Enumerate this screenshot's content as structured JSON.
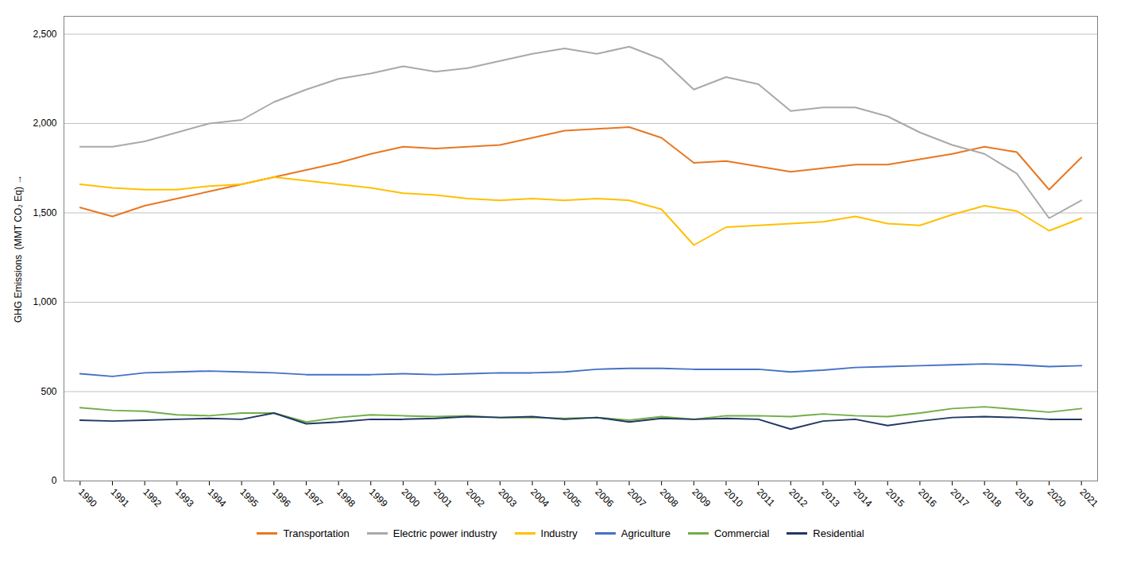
{
  "chart_data": {
    "type": "line",
    "x": [
      1990,
      1991,
      1992,
      1993,
      1994,
      1995,
      1996,
      1997,
      1998,
      1999,
      2000,
      2001,
      2002,
      2003,
      2004,
      2005,
      2006,
      2007,
      2008,
      2009,
      2010,
      2011,
      2012,
      2013,
      2014,
      2015,
      2016,
      2017,
      2018,
      2019,
      2020,
      2021
    ],
    "series": [
      {
        "name": "Transportation",
        "color": "#E87722",
        "values": [
          1530,
          1480,
          1540,
          1580,
          1620,
          1660,
          1700,
          1740,
          1780,
          1830,
          1870,
          1860,
          1870,
          1880,
          1920,
          1960,
          1970,
          1980,
          1920,
          1780,
          1790,
          1760,
          1730,
          1750,
          1770,
          1770,
          1800,
          1830,
          1870,
          1840,
          1630,
          1810
        ]
      },
      {
        "name": "Electric power industry",
        "color": "#A9A9A9",
        "values": [
          1870,
          1870,
          1900,
          1950,
          2000,
          2020,
          2120,
          2190,
          2250,
          2280,
          2320,
          2290,
          2310,
          2350,
          2390,
          2420,
          2390,
          2430,
          2360,
          2190,
          2260,
          2220,
          2070,
          2090,
          2090,
          2040,
          1950,
          1880,
          1830,
          1720,
          1470,
          1570
        ]
      },
      {
        "name": "Industry",
        "color": "#FFC000",
        "values": [
          1660,
          1640,
          1630,
          1630,
          1650,
          1660,
          1700,
          1680,
          1660,
          1640,
          1610,
          1600,
          1580,
          1570,
          1580,
          1570,
          1580,
          1570,
          1520,
          1320,
          1420,
          1430,
          1440,
          1450,
          1480,
          1440,
          1430,
          1490,
          1540,
          1510,
          1400,
          1470
        ]
      },
      {
        "name": "Agriculture",
        "color": "#4472C4",
        "values": [
          600,
          585,
          605,
          610,
          615,
          610,
          605,
          595,
          595,
          595,
          600,
          595,
          600,
          605,
          605,
          610,
          625,
          630,
          630,
          625,
          625,
          625,
          610,
          620,
          635,
          640,
          645,
          650,
          655,
          650,
          640,
          645
        ]
      },
      {
        "name": "Commercial",
        "color": "#70AD47",
        "values": [
          410,
          395,
          390,
          370,
          365,
          380,
          380,
          330,
          355,
          370,
          365,
          360,
          365,
          355,
          355,
          350,
          355,
          340,
          360,
          345,
          365,
          365,
          360,
          375,
          365,
          360,
          380,
          405,
          415,
          400,
          385,
          405
        ]
      },
      {
        "name": "Residential",
        "color": "#1F3864",
        "values": [
          340,
          335,
          340,
          345,
          350,
          345,
          380,
          320,
          330,
          345,
          345,
          350,
          360,
          355,
          360,
          345,
          355,
          330,
          350,
          345,
          350,
          345,
          290,
          335,
          345,
          310,
          335,
          355,
          360,
          355,
          345,
          345
        ]
      }
    ],
    "ylabel": "GHG Emissions  (MMT CO₂ Eq)",
    "xlim": [
      1989.5,
      2021.5
    ],
    "xticks": [
      1990,
      1991,
      1992,
      1993,
      1994,
      1995,
      1996,
      1997,
      1998,
      1999,
      2000,
      2001,
      2002,
      2003,
      2004,
      2005,
      2006,
      2007,
      2008,
      2009,
      2010,
      2011,
      2012,
      2013,
      2014,
      2015,
      2016,
      2017,
      2018,
      2019,
      2020,
      2021
    ],
    "ylim": [
      0,
      2600
    ],
    "yticks": [
      0,
      500,
      {
        "value": 1000,
        "label": "1,000"
      },
      {
        "value": 1500,
        "label": "1,500"
      },
      {
        "value": 2000,
        "label": "2,000"
      },
      {
        "value": 2500,
        "label": "2,500"
      }
    ],
    "grid": "y",
    "legend": "bottom"
  }
}
